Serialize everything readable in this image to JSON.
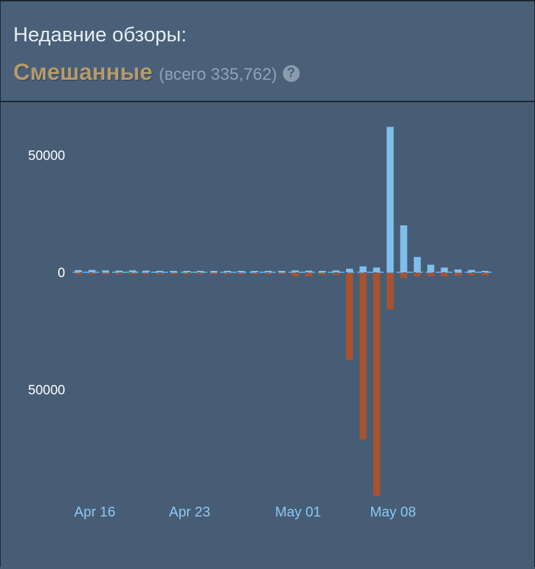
{
  "header": {
    "title": "Недавние обзоры:",
    "summary": "Смешанные",
    "total": "(всего 335,762)",
    "help_icon": "question-mark-icon",
    "help_glyph": "?"
  },
  "colors": {
    "positive": "#80bfec",
    "negative": "#a8522f",
    "summary": "#b39a6e",
    "background": "#475d76"
  },
  "chart_data": {
    "type": "bar",
    "grid": false,
    "legend": "none",
    "ylim": [
      -95000,
      62000
    ],
    "y_ticks": [
      {
        "value": 50000,
        "label": "50000"
      },
      {
        "value": 0,
        "label": "0"
      },
      {
        "value": -50000,
        "label": "50000"
      }
    ],
    "x_ticks": [
      {
        "index": 1,
        "label": "Apr 16"
      },
      {
        "index": 8,
        "label": "Apr 23"
      },
      {
        "index": 16,
        "label": "May 01"
      },
      {
        "index": 23,
        "label": "May 08"
      }
    ],
    "series": [
      {
        "values": [
          900,
          1000,
          800,
          700,
          800,
          700,
          600,
          600,
          600,
          500,
          500,
          500,
          500,
          500,
          600,
          600,
          800,
          700,
          600,
          800,
          1500,
          2500,
          2000,
          62000,
          20000,
          6500,
          3200,
          2000,
          1200,
          1000,
          600
        ]
      },
      {
        "values": [
          -300,
          -300,
          -300,
          -300,
          -300,
          -300,
          -300,
          -300,
          -300,
          -300,
          -300,
          -300,
          -300,
          -300,
          -400,
          -400,
          -1500,
          -1500,
          -800,
          -800,
          -37000,
          -71000,
          -95000,
          -15500,
          -2200,
          -1500,
          -1500,
          -1500,
          -1200,
          -1000,
          -1000
        ]
      }
    ]
  }
}
